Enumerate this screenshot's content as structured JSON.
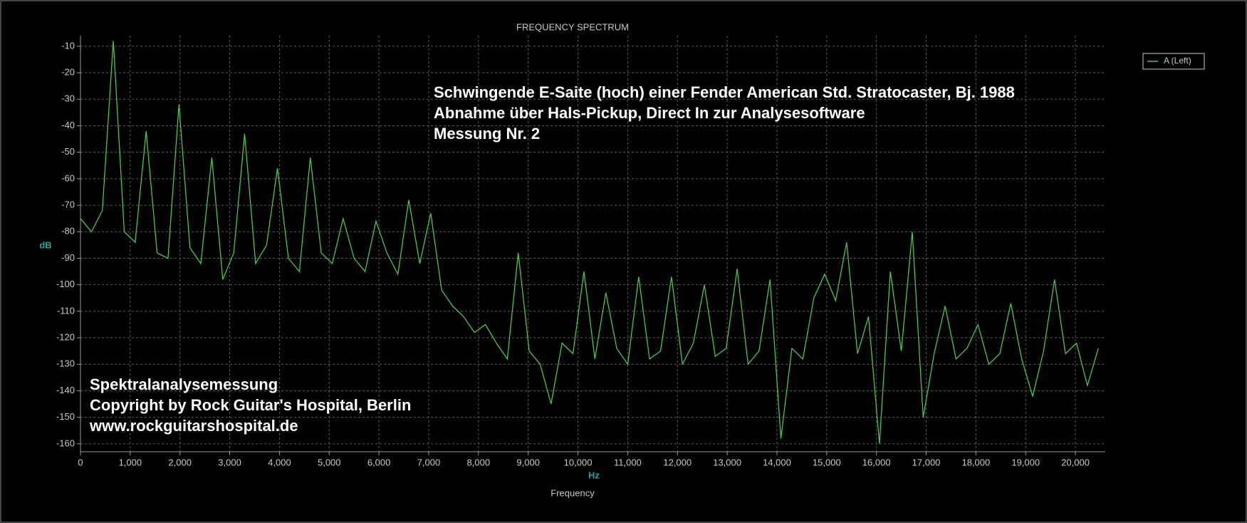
{
  "chart_data": {
    "type": "line",
    "title": "FREQUENCY SPECTRUM",
    "ylabel": "dB",
    "xunit": "Hz",
    "xlabel": "Frequency",
    "annotations_top": [
      "Schwingende E-Saite (hoch) einer Fender American Std. Stratocaster, Bj. 1988",
      "Abnahme über Hals-Pickup, Direct In zur Analysesoftware",
      "Messung Nr. 2"
    ],
    "annotations_bottom": [
      "Spektralanalysemessung",
      "Copyright by Rock Guitar's Hospital, Berlin",
      "www.rockguitarshospital.de"
    ],
    "x": [
      0,
      220,
      440,
      660,
      880,
      1100,
      1320,
      1540,
      1760,
      1980,
      2200,
      2420,
      2640,
      2860,
      3080,
      3300,
      3520,
      3740,
      3960,
      4180,
      4400,
      4620,
      4840,
      5060,
      5280,
      5500,
      5720,
      5940,
      6160,
      6380,
      6600,
      6820,
      7040,
      7260,
      7480,
      7700,
      7920,
      8140,
      8360,
      8580,
      8800,
      9020,
      9240,
      9460,
      9680,
      9900,
      10120,
      10340,
      10560,
      10780,
      11000,
      11220,
      11440,
      11660,
      11880,
      12100,
      12320,
      12540,
      12760,
      12980,
      13200,
      13420,
      13640,
      13860,
      14080,
      14300,
      14520,
      14740,
      14960,
      15180,
      15400,
      15620,
      15840,
      16060,
      16280,
      16500,
      16720,
      16940,
      17160,
      17380,
      17600,
      17820,
      18040,
      18260,
      18480,
      18700,
      18920,
      19140,
      19360,
      19580,
      19800,
      20020,
      20240,
      20460
    ],
    "series": [
      {
        "name": "A (Left)",
        "color": "#46c846",
        "values": [
          -75,
          -80,
          -72,
          -8,
          -80,
          -84,
          -42,
          -88,
          -90,
          -32,
          -86,
          -92,
          -52,
          -98,
          -88,
          -43,
          -92,
          -85,
          -56,
          -90,
          -95,
          -52,
          -88,
          -92,
          -75,
          -90,
          -95,
          -76,
          -88,
          -96,
          -68,
          -92,
          -73,
          -102,
          -108,
          -112,
          -118,
          -115,
          -122,
          -128,
          -88,
          -125,
          -130,
          -145,
          -122,
          -126,
          -95,
          -128,
          -103,
          -124,
          -130,
          -97,
          -128,
          -125,
          -97,
          -130,
          -122,
          -100,
          -127,
          -124,
          -94,
          -130,
          -125,
          -98,
          -158,
          -124,
          -128,
          -105,
          -96,
          -106,
          -84,
          -126,
          -112,
          -160,
          -95,
          -125,
          -80,
          -150,
          -126,
          -108,
          -128,
          -124,
          -115,
          -130,
          -126,
          -107,
          -128,
          -142,
          -125,
          -98,
          -126,
          -122,
          -138,
          -124
        ]
      }
    ],
    "xlim": [
      0,
      20600
    ],
    "ylim": [
      -163,
      -6
    ],
    "xticks": [
      0,
      {
        "value": 1000,
        "label": "1,000"
      },
      {
        "value": 2000,
        "label": "2,000"
      },
      {
        "value": 3000,
        "label": "3,000"
      },
      {
        "value": 4000,
        "label": "4,000"
      },
      {
        "value": 5000,
        "label": "5,000"
      },
      {
        "value": 6000,
        "label": "6,000"
      },
      {
        "value": 7000,
        "label": "7,000"
      },
      {
        "value": 8000,
        "label": "8,000"
      },
      {
        "value": 9000,
        "label": "9,000"
      },
      {
        "value": 10000,
        "label": "10,000"
      },
      {
        "value": 11000,
        "label": "11,000"
      },
      {
        "value": 12000,
        "label": "12,000"
      },
      {
        "value": 13000,
        "label": "13,000"
      },
      {
        "value": 14000,
        "label": "14,000"
      },
      {
        "value": 15000,
        "label": "15,000"
      },
      {
        "value": 16000,
        "label": "16,000"
      },
      {
        "value": 17000,
        "label": "17,000"
      },
      {
        "value": 18000,
        "label": "18,000"
      },
      {
        "value": 19000,
        "label": "19,000"
      },
      {
        "value": 20000,
        "label": "20,000"
      }
    ],
    "yticks": [
      -160,
      -150,
      -140,
      -130,
      -120,
      -110,
      -100,
      -90,
      -80,
      -70,
      -60,
      -50,
      -40,
      -30,
      -20,
      -10
    ],
    "grid": true
  }
}
